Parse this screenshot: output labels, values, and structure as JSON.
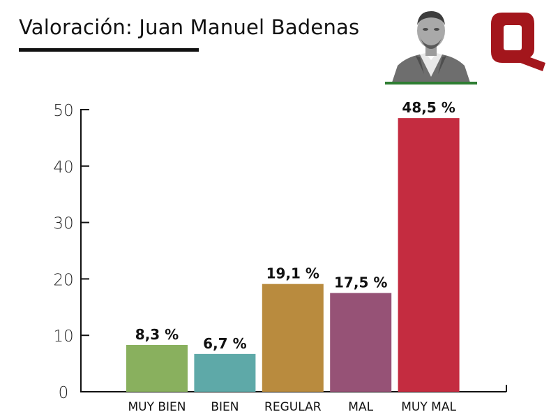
{
  "header": {
    "title": "Valoración: Juan Manuel Badenas"
  },
  "colors": {
    "accent_green_rule": "#2e7d32",
    "logo": "#a3161c"
  },
  "icons": {
    "portrait": "person-portrait",
    "logo": "q-logo"
  },
  "chart_data": {
    "type": "bar",
    "categories": [
      "MUY BIEN",
      "BIEN",
      "REGULAR",
      "MAL",
      "MUY MAL"
    ],
    "values": [
      8.3,
      6.7,
      19.1,
      17.5,
      48.5
    ],
    "value_labels": [
      "8,3 %",
      "6,7 %",
      "19,1 %",
      "17,5 %",
      "48,5 %"
    ],
    "bar_colors": [
      "#89b05e",
      "#5ea9a8",
      "#b98b3e",
      "#965276",
      "#c42c40"
    ],
    "ylim": [
      0,
      50
    ],
    "yticks": [
      0,
      10,
      20,
      30,
      40,
      50
    ],
    "ytick_labels": [
      "0",
      "10",
      "20",
      "30",
      "40",
      "50"
    ],
    "grid": false,
    "legend": false
  }
}
